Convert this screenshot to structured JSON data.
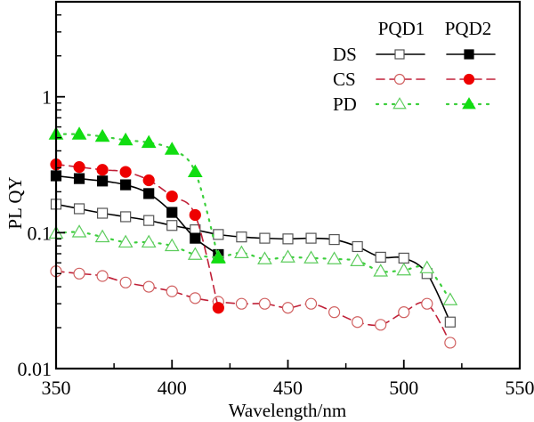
{
  "chart_data": {
    "type": "line",
    "title": "",
    "xlabel": "Wavelength/nm",
    "ylabel": "PL QY",
    "xlim": [
      350,
      550
    ],
    "ylim": [
      0.01,
      5
    ],
    "yscale": "log",
    "grid": false,
    "x_ticks": [
      350,
      400,
      450,
      500,
      550
    ],
    "x_tick_labels": [
      "350",
      "400",
      "450",
      "500",
      "550"
    ],
    "x_minor_ticks": [
      375,
      425,
      475,
      525
    ],
    "y_ticks": [
      0.01,
      0.1,
      1
    ],
    "y_tick_labels": [
      "0.01",
      "0.1",
      "1"
    ],
    "legend": {
      "placement": "top-right",
      "column_headers": [
        "PQD1",
        "PQD2"
      ],
      "row_labels": [
        "DS",
        "CS",
        "PD"
      ]
    },
    "series": [
      {
        "name": "DS PQD1",
        "group": "DS",
        "sample": "PQD1",
        "color": "#000000",
        "marker_fill": "#ffffff",
        "marker_stroke": "#555555",
        "marker": "square",
        "filled": false,
        "line": "solid",
        "x": [
          350,
          360,
          370,
          380,
          390,
          400,
          410,
          420,
          430,
          440,
          450,
          460,
          470,
          480,
          490,
          500,
          510,
          520
        ],
        "values": [
          0.162,
          0.15,
          0.139,
          0.131,
          0.123,
          0.113,
          0.105,
          0.097,
          0.093,
          0.091,
          0.09,
          0.091,
          0.089,
          0.079,
          0.066,
          0.065,
          0.05,
          0.022
        ]
      },
      {
        "name": "DS PQD2",
        "group": "DS",
        "sample": "PQD2",
        "color": "#000000",
        "marker_fill": "#000000",
        "marker_stroke": "#000000",
        "marker": "square",
        "filled": true,
        "line": "solid",
        "x": [
          350,
          360,
          370,
          380,
          390,
          400,
          410,
          420
        ],
        "values": [
          0.262,
          0.25,
          0.24,
          0.225,
          0.194,
          0.141,
          0.091,
          0.069
        ]
      },
      {
        "name": "CS PQD1",
        "group": "CS",
        "sample": "PQD1",
        "color": "#c02038",
        "marker_fill": "#ffffff",
        "marker_stroke": "#d06060",
        "marker": "circle",
        "filled": false,
        "line": "dash",
        "x": [
          350,
          360,
          370,
          380,
          390,
          400,
          410,
          420,
          430,
          440,
          450,
          460,
          470,
          480,
          490,
          500,
          510,
          520
        ],
        "values": [
          0.052,
          0.05,
          0.048,
          0.043,
          0.04,
          0.037,
          0.033,
          0.031,
          0.03,
          0.03,
          0.028,
          0.03,
          0.026,
          0.022,
          0.021,
          0.026,
          0.03,
          0.0155
        ]
      },
      {
        "name": "CS PQD2",
        "group": "CS",
        "sample": "PQD2",
        "color": "#c02038",
        "marker_fill": "#ee0000",
        "marker_stroke": "#ee0000",
        "marker": "circle",
        "filled": true,
        "line": "dash",
        "x": [
          350,
          360,
          370,
          380,
          390,
          400,
          410,
          420
        ],
        "values": [
          0.318,
          0.304,
          0.29,
          0.28,
          0.243,
          0.185,
          0.135,
          0.028
        ]
      },
      {
        "name": "PD PQD1",
        "group": "PD",
        "sample": "PQD1",
        "color": "#3ccf3c",
        "marker_fill": "#ffffff",
        "marker_stroke": "#5ccc5c",
        "marker": "triangle",
        "filled": false,
        "line": "dot",
        "x": [
          350,
          360,
          370,
          380,
          390,
          400,
          410,
          420,
          430,
          440,
          450,
          460,
          470,
          480,
          490,
          500,
          510,
          520
        ],
        "values": [
          0.099,
          0.101,
          0.093,
          0.085,
          0.085,
          0.08,
          0.069,
          0.066,
          0.071,
          0.064,
          0.066,
          0.065,
          0.064,
          0.062,
          0.052,
          0.053,
          0.055,
          0.032
        ]
      },
      {
        "name": "PD PQD2",
        "group": "PD",
        "sample": "PQD2",
        "color": "#3ccf3c",
        "marker_fill": "#11dd11",
        "marker_stroke": "#11dd11",
        "marker": "triangle",
        "filled": true,
        "line": "dot",
        "x": [
          350,
          360,
          370,
          380,
          390,
          400,
          410,
          420
        ],
        "values": [
          0.53,
          0.53,
          0.51,
          0.48,
          0.46,
          0.41,
          0.28,
          0.065
        ]
      }
    ]
  }
}
